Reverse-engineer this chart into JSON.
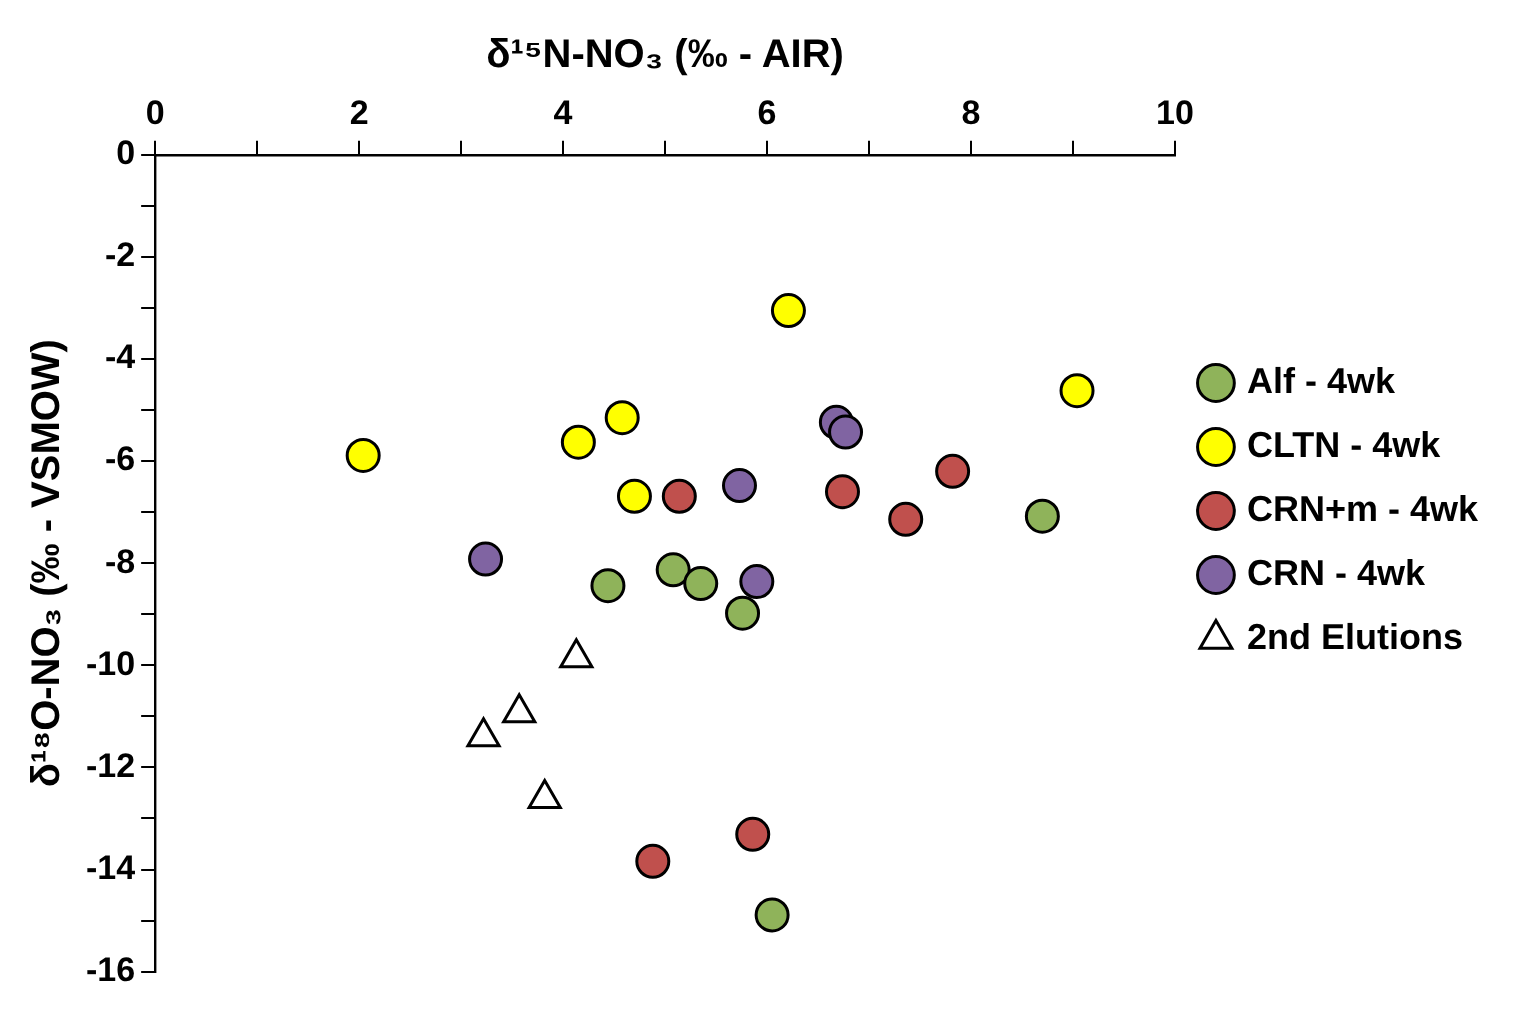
{
  "chart_data": {
    "type": "scatter",
    "xlabel": "δ¹⁵N-NO₃ (‰ - AIR)",
    "ylabel": "δ¹⁸O-NO₃ (‰ - VSMOW)",
    "xlim": [
      0,
      10
    ],
    "xticks": [
      0,
      {
        "value": 1,
        "label": null
      },
      2,
      {
        "value": 3,
        "label": null
      },
      4,
      {
        "value": 5,
        "label": null
      },
      6,
      {
        "value": 7,
        "label": null
      },
      8,
      {
        "value": 9,
        "label": null
      },
      10
    ],
    "ylim": [
      -16,
      0
    ],
    "yticks": [
      0,
      {
        "value": -1,
        "label": null
      },
      -2,
      {
        "value": -3,
        "label": null
      },
      -4,
      {
        "value": -5,
        "label": null
      },
      -6,
      {
        "value": -7,
        "label": null
      },
      -8,
      {
        "value": -9,
        "label": null
      },
      -10,
      {
        "value": -11,
        "label": null
      },
      -12,
      {
        "value": -13,
        "label": null
      },
      -14,
      {
        "value": -15,
        "label": null
      },
      -16
    ],
    "grid": false,
    "legend": "right",
    "marker": "circle",
    "series": [
      {
        "name": "Alf - 4wk",
        "color": "#8fb35a",
        "x": [
          4.44,
          5.08,
          5.35,
          5.76,
          8.7,
          6.05
        ],
        "values": [
          -8.44,
          -8.13,
          -8.4,
          -8.98,
          -7.08,
          -14.89
        ]
      },
      {
        "name": "CLTN - 4wk",
        "color": "#ffff00",
        "x": [
          2.04,
          6.21,
          9.04,
          4.58,
          4.15,
          4.7
        ],
        "values": [
          -5.89,
          -3.05,
          -4.62,
          -5.15,
          -5.63,
          -6.69
        ]
      },
      {
        "name": "CRN+m - 4wk",
        "color": "#c0504d",
        "x": [
          5.14,
          6.74,
          7.82,
          7.36,
          4.88,
          5.86
        ],
        "values": [
          -6.69,
          -6.6,
          -6.2,
          -7.14,
          -13.84,
          -13.31
        ]
      },
      {
        "name": "CRN - 4wk",
        "color": "#8064a2",
        "x": [
          3.24,
          5.73,
          6.68,
          6.77,
          5.9
        ],
        "values": [
          -7.92,
          -6.48,
          -5.24,
          -5.43,
          -8.36
        ]
      },
      {
        "name": "2nd Elutions",
        "color": "#ffffff",
        "marker": "triangle",
        "x": [
          4.13,
          3.57,
          3.22,
          3.82
        ],
        "values": [
          -9.85,
          -10.93,
          -11.4,
          -12.61
        ]
      }
    ]
  }
}
